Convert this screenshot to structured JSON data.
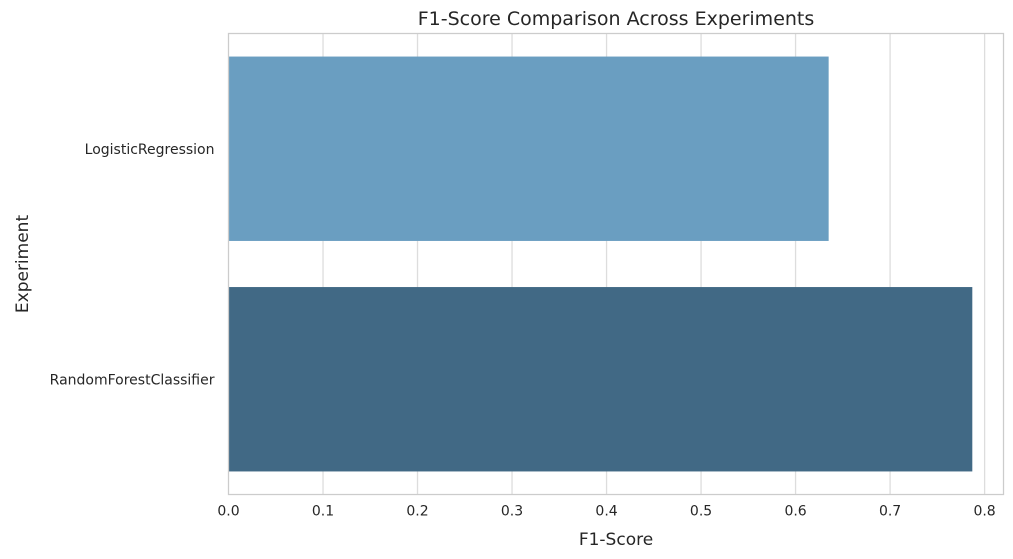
{
  "chart_data": {
    "type": "bar",
    "orientation": "horizontal",
    "title": "F1-Score Comparison Across Experiments",
    "xlabel": "F1-Score",
    "ylabel": "Experiment",
    "categories": [
      "LogisticRegression",
      "RandomForestClassifier"
    ],
    "values": [
      0.635,
      0.787
    ],
    "colors": [
      "#6a9ec1",
      "#416985"
    ],
    "xlim": [
      0.0,
      0.82
    ],
    "xticks": [
      0.0,
      0.1,
      0.2,
      0.3,
      0.4,
      0.5,
      0.6,
      0.7,
      0.8
    ],
    "xtick_labels": [
      "0.0",
      "0.1",
      "0.2",
      "0.3",
      "0.4",
      "0.5",
      "0.6",
      "0.7",
      "0.8"
    ],
    "grid": true,
    "legend": "none"
  },
  "colors": {
    "grid": "#dddddd",
    "spine": "#cccccc",
    "text": "#262626",
    "background": "#ffffff"
  }
}
